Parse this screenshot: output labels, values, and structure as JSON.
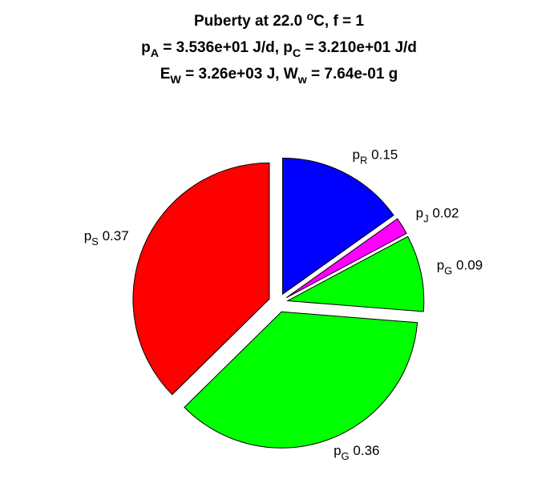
{
  "chart_data": {
    "type": "pie",
    "title_lines": [
      [
        {
          "text": "Puberty at 22.0 "
        },
        {
          "sup": "o"
        },
        {
          "text": "C, f = 1"
        }
      ],
      [
        {
          "text": "p"
        },
        {
          "sub": "A"
        },
        {
          "text": " = 3.536e+01 J/d,  p"
        },
        {
          "sub": "C"
        },
        {
          "text": " = 3.210e+01 J/d"
        }
      ],
      [
        {
          "text": "E"
        },
        {
          "sub": "W"
        },
        {
          "text": " = 3.26e+03 J, W"
        },
        {
          "sub": "w"
        },
        {
          "text": " = 7.64e-01 g"
        }
      ]
    ],
    "categories": [
      {
        "text": "p",
        "sub": "R"
      },
      {
        "text": "p",
        "sub": "J"
      },
      {
        "text": "p",
        "sub": "G"
      },
      {
        "text": "p",
        "sub": "G"
      },
      {
        "text": "p",
        "sub": "S"
      }
    ],
    "values": [
      0.15,
      0.02,
      0.09,
      0.36,
      0.37
    ],
    "colors": [
      "#0000ff",
      "#ff00ff",
      "#00ff00",
      "#00ff00",
      "#ff0000"
    ],
    "exploded": true
  }
}
